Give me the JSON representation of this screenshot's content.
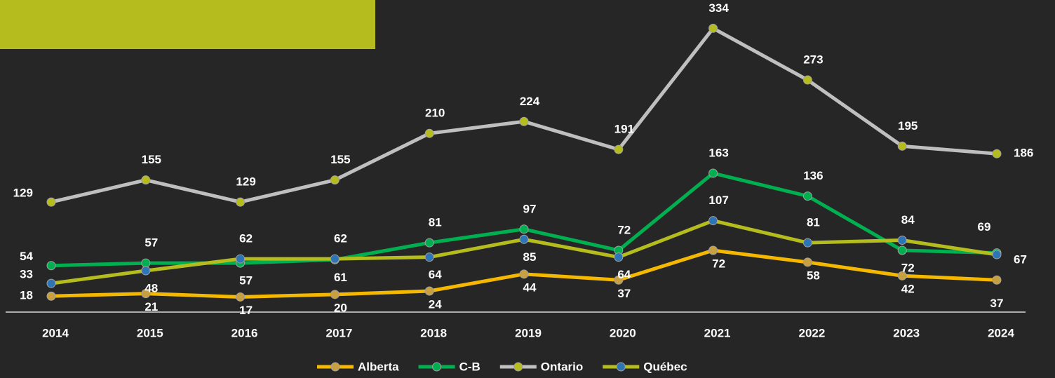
{
  "chart_data": {
    "type": "line",
    "categories": [
      "2014",
      "2015",
      "2016",
      "2017",
      "2018",
      "2019",
      "2020",
      "2021",
      "2022",
      "2023",
      "2024"
    ],
    "series": [
      {
        "name": "Alberta",
        "color": "#f5b800",
        "marker_color": "#c8a040",
        "values": [
          18,
          21,
          17,
          20,
          24,
          44,
          37,
          72,
          58,
          42,
          37
        ]
      },
      {
        "name": "C-B",
        "color": "#00b050",
        "marker_color": "#00b050",
        "values": [
          54,
          57,
          57,
          61,
          81,
          97,
          72,
          163,
          136,
          72,
          69
        ]
      },
      {
        "name": "Ontario",
        "color": "#bfbfbf",
        "marker_color": "#b5bd1e",
        "values": [
          129,
          155,
          129,
          155,
          210,
          224,
          191,
          334,
          273,
          195,
          186
        ]
      },
      {
        "name": "Québec",
        "color": "#b5bd1e",
        "marker_color": "#2e75b6",
        "values": [
          33,
          48,
          62,
          62,
          64,
          85,
          64,
          107,
          81,
          84,
          67
        ]
      }
    ],
    "ylim": [
      0,
      350
    ],
    "legend": "bottom"
  }
}
